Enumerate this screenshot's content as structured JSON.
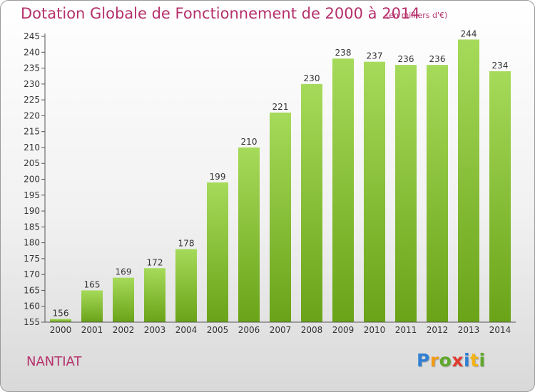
{
  "title": "Dotation Globale de Fonctionnement de 2000 à 2014",
  "subtitle": "(en milliers d'€)",
  "commune": "NANTIAT",
  "brand": "Proxiti",
  "colors": {
    "title": "#b5306b",
    "bar_light": "#a6da5a",
    "bar_dark": "#6aa318",
    "axis": "#555555"
  },
  "chart_data": {
    "type": "bar",
    "title": "Dotation Globale de Fonctionnement de 2000 à 2014",
    "subtitle": "(en milliers d'€)",
    "xlabel": "",
    "ylabel": "",
    "categories": [
      "2000",
      "2001",
      "2002",
      "2003",
      "2004",
      "2005",
      "2006",
      "2007",
      "2008",
      "2009",
      "2010",
      "2011",
      "2012",
      "2013",
      "2014"
    ],
    "values": [
      156,
      165,
      169,
      172,
      178,
      199,
      210,
      221,
      230,
      238,
      237,
      236,
      236,
      244,
      234
    ],
    "ylim": [
      155,
      245
    ],
    "yticks": [
      155,
      160,
      165,
      170,
      175,
      180,
      185,
      190,
      195,
      200,
      205,
      210,
      215,
      220,
      225,
      230,
      235,
      240,
      245
    ],
    "grid": false,
    "legend": "none",
    "data_labels": true
  }
}
